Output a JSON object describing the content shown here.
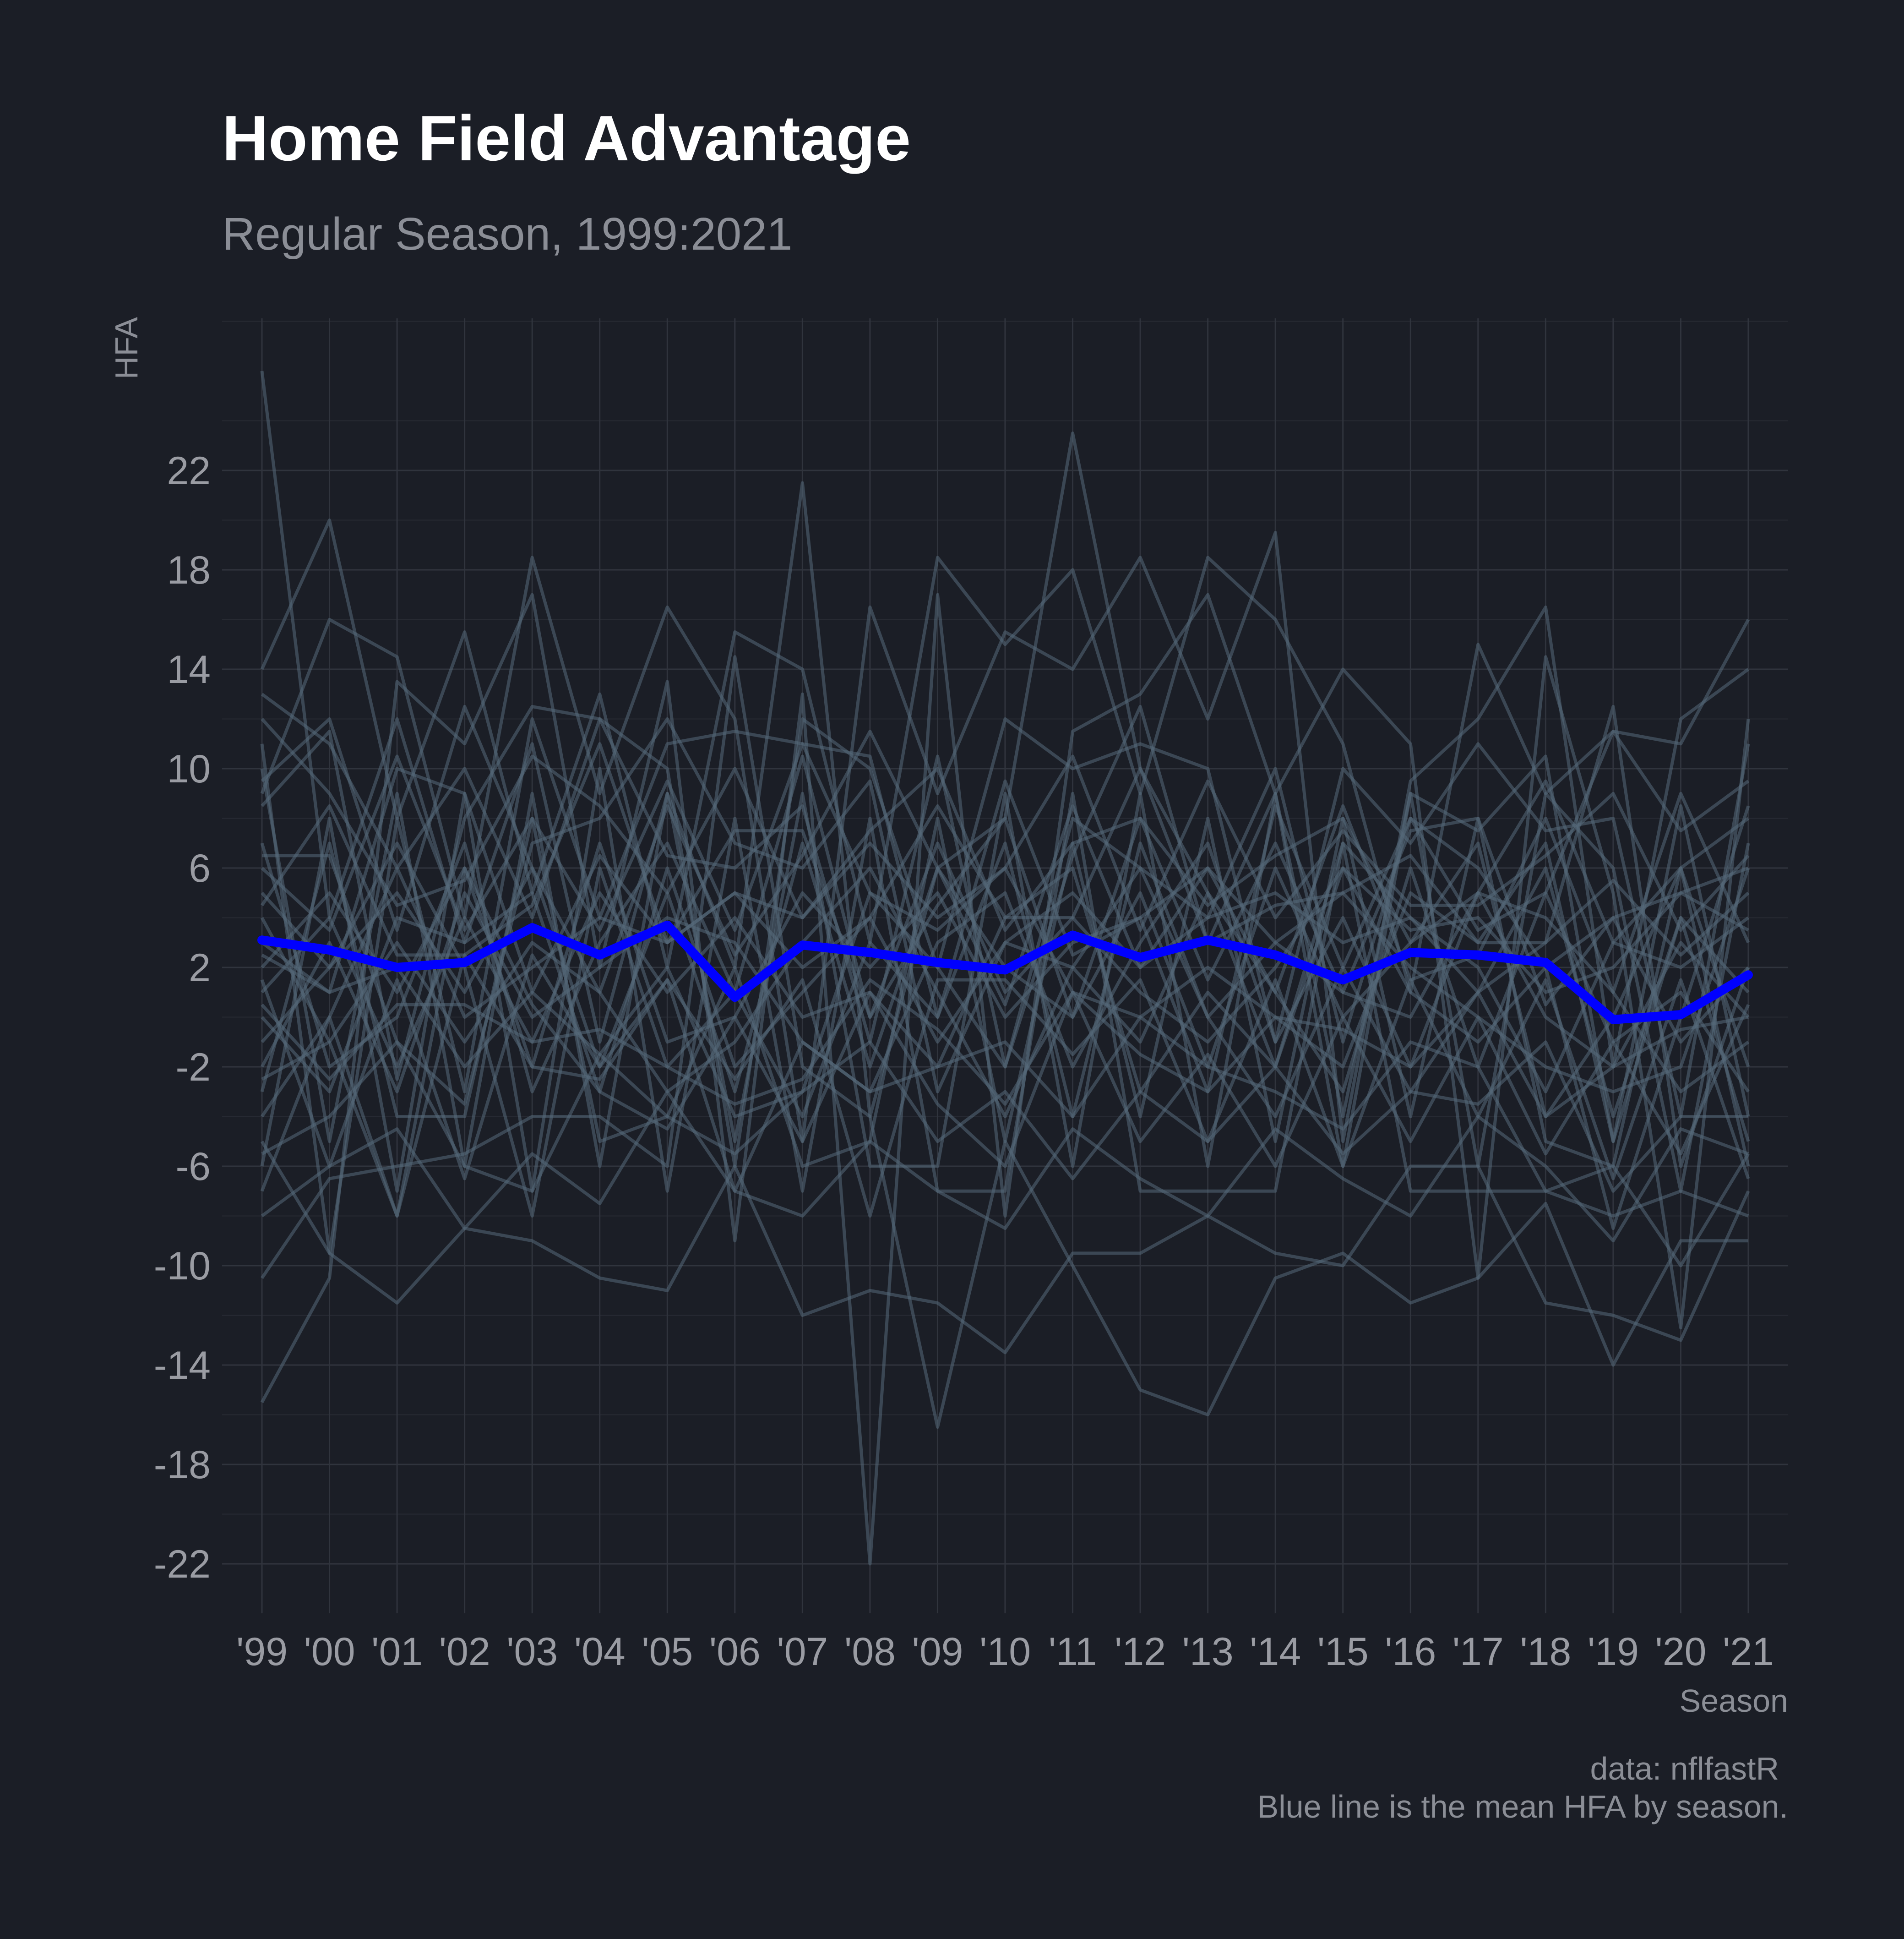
{
  "chart_data": {
    "type": "line",
    "title": "Home Field Advantage",
    "subtitle": "Regular Season, 1999:2021",
    "xlabel": "Season",
    "ylabel": "HFA",
    "caption": [
      "data: nflfastR",
      "Blue line is the mean HFA by season."
    ],
    "categories": [
      "'99",
      "'00",
      "'01",
      "'02",
      "'03",
      "'04",
      "'05",
      "'06",
      "'07",
      "'08",
      "'09",
      "'10",
      "'11",
      "'12",
      "'13",
      "'14",
      "'15",
      "'16",
      "'17",
      "'18",
      "'19",
      "'20",
      "'21"
    ],
    "yticks": [
      22,
      18,
      14,
      10,
      6,
      2,
      -2,
      -6,
      -10,
      -14,
      -18,
      -22
    ],
    "ylim": [
      -24,
      28
    ],
    "grid": true,
    "mean_color": "#0000ff",
    "team_color": "#56697a",
    "background": "#1b1e26",
    "mean_series": {
      "values": [
        3.1,
        2.7,
        2.0,
        2.2,
        3.6,
        2.5,
        3.7,
        0.8,
        2.9,
        2.6,
        2.2,
        1.9,
        3.3,
        2.4,
        3.1,
        2.5,
        1.5,
        2.6,
        2.5,
        2.2,
        -0.1,
        0.1,
        1.7
      ]
    },
    "team_series": [
      {
        "values": [
          26.0,
          4.0,
          12.0,
          3.0,
          11.0,
          -1.0,
          9.0,
          2.0,
          21.5,
          -4.0,
          6.0,
          8.0,
          23.5,
          10.0,
          5.0,
          -2.0,
          7.0,
          4.0,
          1.0,
          3.0,
          12.5,
          -6.0,
          2.0
        ]
      },
      {
        "values": [
          14.0,
          20.0,
          8.0,
          15.5,
          5.0,
          13.0,
          2.0,
          15.5,
          14.0,
          3.0,
          18.5,
          15.0,
          18.0,
          9.0,
          18.5,
          16.0,
          11.0,
          1.0,
          15.0,
          9.0,
          11.5,
          11.0,
          16.0
        ]
      },
      {
        "values": [
          9.0,
          16.0,
          14.5,
          4.0,
          18.5,
          9.0,
          16.5,
          12.0,
          -5.0,
          16.5,
          9.0,
          15.5,
          14.0,
          18.5,
          12.0,
          19.5,
          -5.0,
          9.5,
          12.0,
          16.5,
          -2.0,
          12.0,
          14.0
        ]
      },
      {
        "values": [
          -15.5,
          -10.5,
          13.5,
          11.0,
          17.0,
          2.0,
          13.5,
          -9.0,
          13.0,
          -22.0,
          17.0,
          -8.0,
          11.5,
          13.0,
          17.0,
          9.0,
          14.0,
          11.0,
          -10.5,
          14.5,
          5.0,
          -12.5,
          12.0
        ]
      },
      {
        "values": [
          -10.5,
          -6.5,
          -6.0,
          -5.5,
          -4.0,
          -4.0,
          -6.0,
          14.5,
          -2.0,
          -4.0,
          -16.5,
          -5.0,
          -10.0,
          -15.0,
          -16.0,
          -10.5,
          -9.5,
          -11.5,
          -10.5,
          -7.5,
          -14.0,
          -9.0,
          -9.0
        ]
      },
      {
        "values": [
          -5.0,
          -9.5,
          -11.5,
          -8.5,
          -9.0,
          -10.5,
          -11.0,
          -6.0,
          -12.0,
          -11.0,
          -11.5,
          -13.5,
          -9.5,
          -9.5,
          -8.0,
          -9.5,
          -10.0,
          -6.0,
          -6.0,
          -11.5,
          -12.0,
          -13.0,
          -7.0
        ]
      },
      {
        "values": [
          8.5,
          11.5,
          -2.5,
          8.0,
          12.5,
          12.0,
          6.5,
          6.0,
          8.5,
          -1.0,
          10.5,
          -2.0,
          6.5,
          12.5,
          3.0,
          9.0,
          -4.0,
          9.0,
          7.5,
          10.5,
          -5.0,
          8.5,
          -4.0
        ]
      },
      {
        "values": [
          11.0,
          -9.5,
          8.0,
          -3.0,
          12.0,
          4.0,
          11.0,
          11.5,
          11.0,
          10.5,
          0.0,
          9.5,
          2.5,
          4.0,
          -3.0,
          8.5,
          2.0,
          8.0,
          3.5,
          5.0,
          11.5,
          7.5,
          9.5
        ]
      },
      {
        "values": [
          6.5,
          6.5,
          -1.0,
          -3.5,
          7.0,
          8.0,
          12.0,
          7.0,
          6.0,
          9.5,
          -3.0,
          3.0,
          2.0,
          6.0,
          4.0,
          10.0,
          -1.0,
          8.0,
          6.0,
          2.0,
          -8.5,
          0.0,
          8.5
        ]
      },
      {
        "values": [
          5.0,
          2.0,
          7.0,
          2.0,
          -8.0,
          6.0,
          -2.0,
          1.0,
          10.5,
          0.0,
          7.0,
          1.0,
          4.0,
          1.0,
          -1.0,
          2.0,
          6.0,
          3.5,
          4.0,
          1.0,
          2.0,
          5.0,
          3.5
        ]
      },
      {
        "values": [
          3.0,
          1.0,
          2.0,
          -2.0,
          1.0,
          -1.5,
          2.0,
          -4.0,
          -3.0,
          5.0,
          2.0,
          -2.0,
          8.0,
          6.0,
          0.0,
          3.0,
          5.0,
          2.0,
          0.0,
          -2.0,
          -3.0,
          -2.0,
          6.0
        ]
      },
      {
        "values": [
          -4.0,
          0.0,
          6.0,
          0.0,
          2.0,
          4.0,
          3.0,
          5.0,
          4.0,
          7.0,
          4.0,
          6.0,
          1.0,
          0.0,
          2.0,
          0.0,
          -2.0,
          5.0,
          3.0,
          7.0,
          -5.0,
          4.0,
          1.0
        ]
      },
      {
        "values": [
          2.0,
          5.0,
          1.0,
          6.0,
          -2.0,
          7.0,
          -1.0,
          0.0,
          5.0,
          2.0,
          5.0,
          0.0,
          3.0,
          4.0,
          6.0,
          3.0,
          1.0,
          0.0,
          5.0,
          4.0,
          1.0,
          -3.0,
          -1.0
        ]
      },
      {
        "values": [
          0.0,
          -3.0,
          4.0,
          3.0,
          5.0,
          -3.0,
          6.0,
          -2.0,
          1.0,
          4.0,
          -1.0,
          3.0,
          5.0,
          2.0,
          4.0,
          5.0,
          3.0,
          4.0,
          2.0,
          -3.0,
          3.0,
          2.0,
          4.0
        ]
      },
      {
        "values": [
          -2.0,
          3.0,
          -3.0,
          5.0,
          0.0,
          2.0,
          4.0,
          3.0,
          -1.0,
          -3.0,
          3.0,
          5.0,
          -2.0,
          3.0,
          7.0,
          -1.0,
          4.0,
          -2.0,
          5.0,
          0.0,
          -2.0,
          3.0,
          0.0
        ]
      },
      {
        "values": [
          4.0,
          -1.0,
          3.0,
          -1.0,
          3.0,
          1.0,
          -3.0,
          -1.0,
          3.0,
          6.0,
          1.0,
          -4.0,
          2.0,
          -1.0,
          5.0,
          1.0,
          -3.0,
          6.0,
          -2.0,
          5.0,
          -1.0,
          1.0,
          -3.0
        ]
      },
      {
        "values": [
          1.0,
          4.0,
          -2.0,
          4.0,
          -1.0,
          5.0,
          1.0,
          4.0,
          0.0,
          1.0,
          -2.0,
          4.0,
          6.0,
          -3.0,
          1.0,
          -2.0,
          6.0,
          1.0,
          -1.0,
          2.0,
          4.0,
          -1.0,
          2.0
        ]
      },
      {
        "values": [
          -1.0,
          2.0,
          5.0,
          1.0,
          6.0,
          -2.0,
          5.0,
          -3.0,
          7.0,
          -2.0,
          6.0,
          2.0,
          0.0,
          5.0,
          -2.0,
          6.0,
          0.0,
          3.0,
          7.0,
          -4.0,
          0.0,
          6.0,
          -2.0
        ]
      },
      {
        "values": [
          7.0,
          -2.0,
          0.0,
          7.0,
          -3.0,
          3.0,
          7.0,
          1.0,
          -4.0,
          3.0,
          0.0,
          7.0,
          -4.0,
          7.0,
          0.0,
          -4.0,
          2.0,
          -3.0,
          1.0,
          6.0,
          -4.0,
          4.0,
          -5.0
        ]
      },
      {
        "values": [
          -3.0,
          7.0,
          -4.0,
          -4.0,
          8.0,
          -5.0,
          -4.0,
          2.0,
          -6.0,
          -5.0,
          8.0,
          -5.0,
          7.0,
          -4.0,
          8.0,
          -5.0,
          8.0,
          -4.0,
          8.0,
          -5.0,
          -6.0,
          6.0,
          -6.0
        ]
      },
      {
        "values": [
          10.0,
          -5.0,
          9.0,
          -6.0,
          9.0,
          -6.0,
          9.0,
          -5.0,
          9.0,
          -6.0,
          -6.0,
          9.0,
          -6.0,
          9.0,
          -6.0,
          9.0,
          -6.0,
          9.0,
          -6.0,
          9.0,
          6.0,
          -7.0,
          7.0
        ]
      },
      {
        "values": [
          -6.0,
          8.0,
          -7.0,
          9.0,
          -7.0,
          10.0,
          -7.0,
          8.0,
          -7.0,
          8.0,
          -7.0,
          -7.0,
          9.0,
          -7.0,
          -7.0,
          -7.0,
          7.0,
          -7.0,
          -7.0,
          -7.0,
          -8.0,
          -7.0,
          -8.0
        ]
      },
      {
        "values": [
          13.0,
          11.0,
          6.0,
          10.0,
          4.0,
          12.0,
          10.0,
          -6.0,
          12.0,
          10.0,
          2.0,
          12.0,
          10.0,
          11.0,
          10.0,
          -1.0,
          10.0,
          7.0,
          11.0,
          7.5,
          8.0,
          -4.0,
          11.0
        ]
      },
      {
        "values": [
          -2.5,
          -1.0,
          -8.0,
          2.5,
          -2.0,
          -2.5,
          1.5,
          -7.0,
          -1.0,
          -3.0,
          -2.0,
          -1.0,
          -4.0,
          0.0,
          -2.0,
          -3.0,
          -4.5,
          -1.0,
          -2.0,
          -7.0,
          -6.0,
          -10.0,
          -5.5
        ]
      },
      {
        "values": [
          2.5,
          1.0,
          10.0,
          9.0,
          1.0,
          6.5,
          3.0,
          7.5,
          7.5,
          0.0,
          4.5,
          8.0,
          0.0,
          8.0,
          1.5,
          7.0,
          1.0,
          7.5,
          8.0,
          0.5,
          4.0,
          5.0,
          6.0
        ]
      },
      {
        "values": [
          -5.5,
          -4.0,
          -1.0,
          -6.0,
          -7.0,
          -1.5,
          -4.0,
          -5.5,
          -3.0,
          -1.0,
          -5.0,
          -3.0,
          -6.5,
          -3.0,
          -5.0,
          -2.0,
          -5.5,
          -3.0,
          -3.5,
          -1.0,
          -7.0,
          -4.0,
          -4.0
        ]
      },
      {
        "values": [
          9.5,
          12.0,
          3.5,
          12.5,
          6.0,
          1.0,
          8.5,
          2.5,
          6.5,
          11.5,
          6.0,
          0.5,
          8.5,
          2.0,
          6.0,
          1.0,
          8.5,
          1.5,
          2.5,
          8.0,
          1.0,
          9.0,
          3.0
        ]
      },
      {
        "values": [
          0.5,
          -2.5,
          0.5,
          0.5,
          -1.0,
          -0.5,
          -2.0,
          -3.5,
          -2.5,
          1.5,
          -0.5,
          -3.5,
          1.0,
          -1.5,
          -3.0,
          0.0,
          -0.5,
          -2.0,
          1.0,
          -4.0,
          -2.0,
          -0.5,
          0.0
        ]
      },
      {
        "values": [
          12.0,
          9.0,
          4.5,
          5.5,
          10.5,
          8.5,
          5.0,
          10.0,
          4.0,
          7.5,
          10.0,
          3.5,
          7.0,
          8.0,
          4.5,
          6.5,
          8.0,
          3.0,
          5.0,
          9.5,
          3.0,
          6.0,
          8.0
        ]
      },
      {
        "values": [
          -8.0,
          -6.0,
          -4.5,
          -8.5,
          -5.5,
          -7.5,
          -3.0,
          -7.0,
          -8.0,
          -5.0,
          -7.0,
          -8.5,
          -4.5,
          -6.5,
          -8.0,
          -4.5,
          -6.5,
          -8.0,
          -4.0,
          -6.0,
          -9.0,
          -4.5,
          -5.5
        ]
      },
      {
        "values": [
          4.5,
          8.5,
          2.5,
          2.5,
          4.5,
          11.0,
          3.0,
          5.0,
          2.0,
          4.0,
          8.5,
          4.0,
          4.0,
          10.0,
          3.0,
          4.5,
          5.0,
          6.5,
          3.0,
          3.0,
          5.5,
          2.5,
          5.0
        ]
      },
      {
        "values": [
          -7.0,
          0.0,
          -8.0,
          6.0,
          0.5,
          -3.0,
          -4.5,
          0.0,
          -5.0,
          1.0,
          -3.5,
          -6.0,
          1.0,
          -5.0,
          -1.5,
          -6.0,
          0.0,
          -5.0,
          0.0,
          -5.5,
          -1.0,
          -5.5,
          0.5
        ]
      },
      {
        "values": [
          6.0,
          3.5,
          10.5,
          3.5,
          8.0,
          3.5,
          9.5,
          3.5,
          11.0,
          5.0,
          3.5,
          6.0,
          10.5,
          3.5,
          9.5,
          4.0,
          7.5,
          4.5,
          4.5,
          6.5,
          9.0,
          3.5,
          6.5
        ]
      },
      {
        "values": [
          1.5,
          -6.0,
          1.5,
          -6.5,
          2.5,
          -2.0,
          1.5,
          -2.5,
          1.5,
          -8.0,
          1.5,
          1.5,
          -1.5,
          1.5,
          -5.0,
          1.5,
          -6.0,
          1.5,
          -4.0,
          1.5,
          -6.5,
          1.5,
          -6.5
        ]
      }
    ]
  }
}
